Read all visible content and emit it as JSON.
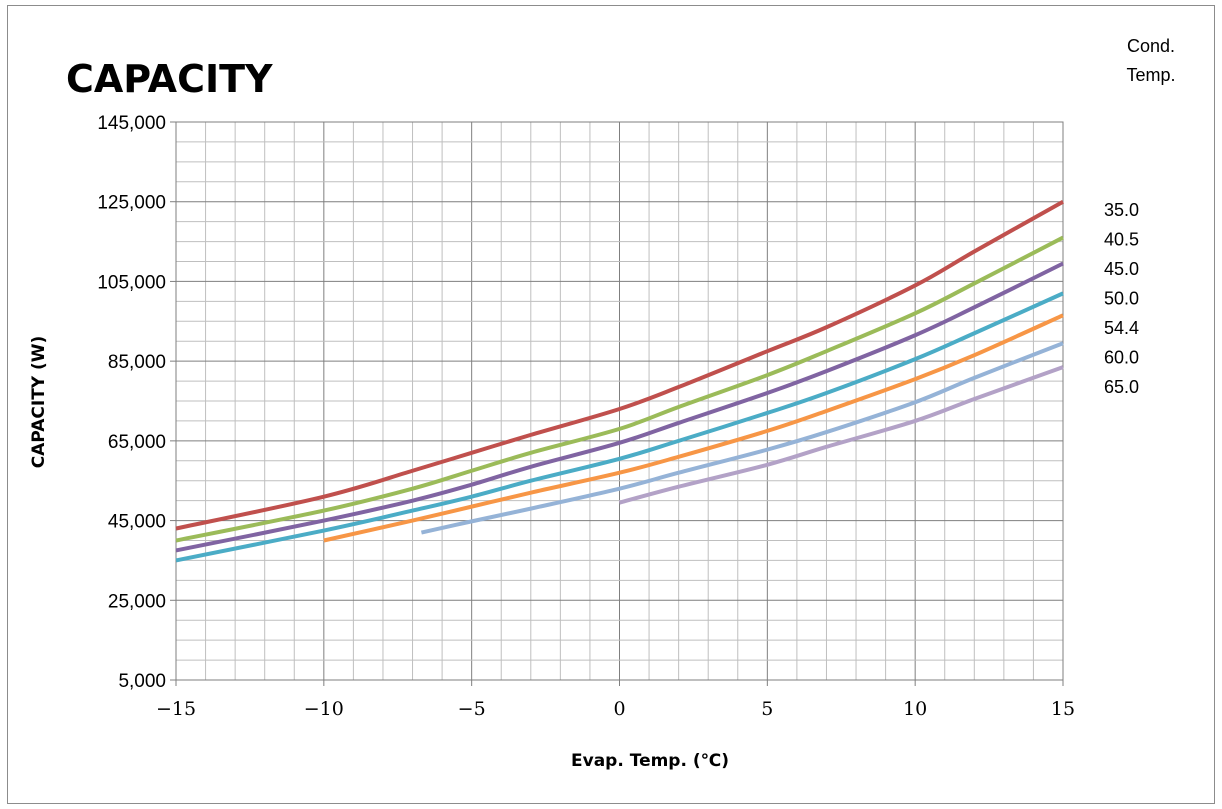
{
  "chart_data": {
    "type": "line",
    "title": "CAPACITY",
    "xlabel": "Evap. Temp. (℃)",
    "ylabel": "CAPACITY (W)",
    "legend_title": "Cond. Temp.",
    "legend_title_lines": [
      "Cond.",
      "Temp."
    ],
    "xlim": [
      -15,
      15
    ],
    "ylim": [
      5000,
      145000
    ],
    "xticks": [
      -15,
      -10,
      -5,
      0,
      5,
      10,
      15
    ],
    "xtick_labels": [
      "−15",
      "−10",
      "−5",
      "0",
      "5",
      "10",
      "15"
    ],
    "yticks": [
      5000,
      25000,
      45000,
      65000,
      85000,
      105000,
      125000,
      145000
    ],
    "ytick_labels": [
      "5,000",
      "25,000",
      "45,000",
      "65,000",
      "85,000",
      "105,000",
      "125,000",
      "145,000"
    ],
    "grid": true,
    "legend_position": "right",
    "series": [
      {
        "name": "35.0",
        "color": "#c0504d",
        "x": [
          -15,
          -10,
          -7,
          -5,
          -3,
          0,
          2,
          5,
          7,
          10,
          12,
          15
        ],
        "y": [
          43000,
          51000,
          57500,
          62000,
          66500,
          73000,
          78500,
          87500,
          93500,
          104000,
          112500,
          125000
        ]
      },
      {
        "name": "40.5",
        "color": "#9bbb59",
        "x": [
          -15,
          -10,
          -7,
          -5,
          -3,
          0,
          2,
          5,
          7,
          10,
          12,
          15
        ],
        "y": [
          40000,
          47500,
          53000,
          57500,
          62000,
          68000,
          73500,
          81500,
          87500,
          97000,
          104500,
          116000
        ]
      },
      {
        "name": "45.0",
        "color": "#8064a2",
        "x": [
          -15,
          -10,
          -7,
          -5,
          -3,
          0,
          2,
          5,
          7,
          10,
          12,
          15
        ],
        "y": [
          37500,
          45000,
          50000,
          54000,
          58500,
          64500,
          69500,
          77000,
          82500,
          91500,
          98500,
          109500
        ]
      },
      {
        "name": "50.0",
        "color": "#4bacc6",
        "x": [
          -15,
          -10,
          -7,
          -5,
          -3,
          0,
          2,
          5,
          7,
          10,
          12,
          15
        ],
        "y": [
          35000,
          42500,
          47500,
          51000,
          55000,
          60500,
          65000,
          72000,
          77000,
          85500,
          92000,
          102000
        ]
      },
      {
        "name": "54.4",
        "color": "#f79646",
        "x": [
          -10,
          -7,
          -5,
          -3,
          0,
          2,
          5,
          7,
          10,
          12,
          15
        ],
        "y": [
          40000,
          45000,
          48500,
          52000,
          57000,
          61000,
          67500,
          72500,
          80500,
          86500,
          96500
        ]
      },
      {
        "name": "60.0",
        "color": "#95b3d7",
        "x": [
          -6.7,
          -5,
          -3,
          0,
          2,
          5,
          7,
          10,
          12,
          15
        ],
        "y": [
          42000,
          44800,
          48000,
          53000,
          57000,
          62800,
          67200,
          74700,
          80800,
          89500
        ]
      },
      {
        "name": "65.0",
        "color": "#b3a2c7",
        "x": [
          0,
          2,
          5,
          7,
          10,
          12,
          15
        ],
        "y": [
          49500,
          53500,
          59000,
          63500,
          70000,
          75500,
          83500
        ]
      }
    ]
  }
}
